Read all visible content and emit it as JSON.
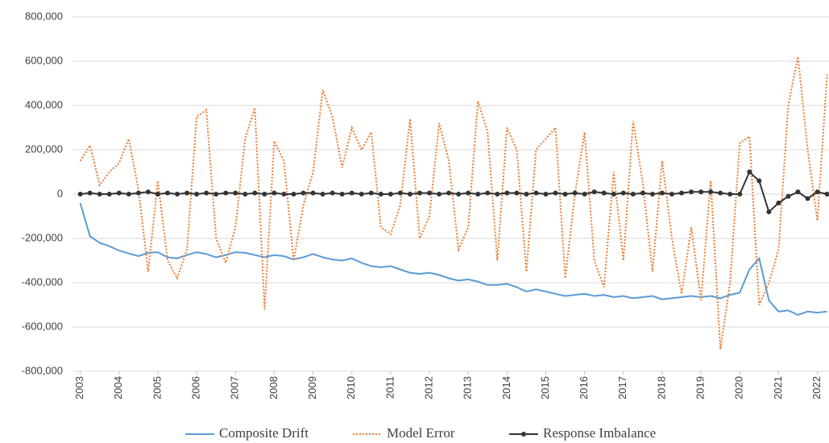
{
  "chart_data": {
    "type": "line",
    "x": [
      2003,
      2003.25,
      2003.5,
      2003.75,
      2004,
      2004.25,
      2004.5,
      2004.75,
      2005,
      2005.25,
      2005.5,
      2005.75,
      2006,
      2006.25,
      2006.5,
      2006.75,
      2007,
      2007.25,
      2007.5,
      2007.75,
      2008,
      2008.25,
      2008.5,
      2008.75,
      2009,
      2009.25,
      2009.5,
      2009.75,
      2010,
      2010.25,
      2010.5,
      2010.75,
      2011,
      2011.25,
      2011.5,
      2011.75,
      2012,
      2012.25,
      2012.5,
      2012.75,
      2013,
      2013.25,
      2013.5,
      2013.75,
      2014,
      2014.25,
      2014.5,
      2014.75,
      2015,
      2015.25,
      2015.5,
      2015.75,
      2016,
      2016.25,
      2016.5,
      2016.75,
      2017,
      2017.25,
      2017.5,
      2017.75,
      2018,
      2018.25,
      2018.5,
      2018.75,
      2019,
      2019.25,
      2019.5,
      2019.75,
      2020,
      2020.25,
      2020.5,
      2020.75,
      2021,
      2021.25,
      2021.5,
      2021.75,
      2022,
      2022.25
    ],
    "series": [
      {
        "name": "Composite Drift",
        "color": "#5b9bd5",
        "linestyle": "solid",
        "values": [
          -40000,
          -190000,
          -220000,
          -235000,
          -255000,
          -268000,
          -280000,
          -265000,
          -262000,
          -285000,
          -290000,
          -275000,
          -262000,
          -270000,
          -285000,
          -275000,
          -262000,
          -265000,
          -275000,
          -285000,
          -275000,
          -280000,
          -295000,
          -285000,
          -270000,
          -285000,
          -295000,
          -300000,
          -290000,
          -310000,
          -325000,
          -330000,
          -325000,
          -340000,
          -355000,
          -360000,
          -355000,
          -365000,
          -380000,
          -390000,
          -385000,
          -395000,
          -410000,
          -410000,
          -405000,
          -420000,
          -440000,
          -430000,
          -440000,
          -450000,
          -460000,
          -455000,
          -450000,
          -460000,
          -455000,
          -465000,
          -460000,
          -470000,
          -465000,
          -460000,
          -475000,
          -470000,
          -465000,
          -460000,
          -465000,
          -460000,
          -470000,
          -455000,
          -445000,
          -340000,
          -290000,
          -480000,
          -530000,
          -525000,
          -545000,
          -530000,
          -535000,
          -530000
        ]
      },
      {
        "name": "Model Error",
        "color": "#ed7d31",
        "linestyle": "dotted",
        "values": [
          150000,
          220000,
          40000,
          100000,
          140000,
          250000,
          20000,
          -350000,
          60000,
          -300000,
          -380000,
          -250000,
          350000,
          380000,
          -200000,
          -310000,
          -150000,
          250000,
          390000,
          -520000,
          240000,
          150000,
          -300000,
          -50000,
          100000,
          470000,
          350000,
          120000,
          300000,
          200000,
          280000,
          -150000,
          -180000,
          -50000,
          340000,
          -200000,
          -100000,
          320000,
          150000,
          -250000,
          -150000,
          420000,
          280000,
          -300000,
          300000,
          200000,
          -350000,
          200000,
          250000,
          300000,
          -380000,
          0,
          280000,
          -300000,
          -420000,
          100000,
          -300000,
          330000,
          50000,
          -350000,
          150000,
          -200000,
          -450000,
          -150000,
          -480000,
          60000,
          -700000,
          -400000,
          230000,
          260000,
          -500000,
          -400000,
          -250000,
          400000,
          620000,
          200000,
          -120000,
          540000
        ]
      },
      {
        "name": "Response Imbalance",
        "color": "#333333",
        "linestyle": "solid",
        "marker": "circle",
        "values": [
          0,
          5000,
          0,
          0,
          5000,
          0,
          5000,
          10000,
          0,
          5000,
          0,
          5000,
          0,
          5000,
          0,
          5000,
          5000,
          0,
          5000,
          0,
          5000,
          0,
          0,
          5000,
          5000,
          0,
          5000,
          0,
          5000,
          0,
          5000,
          0,
          0,
          5000,
          0,
          5000,
          5000,
          0,
          5000,
          0,
          5000,
          0,
          5000,
          0,
          5000,
          5000,
          0,
          5000,
          0,
          5000,
          0,
          5000,
          0,
          10000,
          5000,
          0,
          5000,
          0,
          5000,
          0,
          5000,
          0,
          5000,
          10000,
          10000,
          10000,
          5000,
          0,
          0,
          100000,
          60000,
          -80000,
          -40000,
          -10000,
          10000,
          -20000,
          10000,
          0
        ]
      }
    ],
    "xlim": [
      2002.8,
      2022.3
    ],
    "xticks": [
      2003,
      2004,
      2005,
      2006,
      2007,
      2008,
      2009,
      2010,
      2011,
      2012,
      2013,
      2014,
      2015,
      2016,
      2017,
      2018,
      2019,
      2020,
      2021,
      2022
    ],
    "ylim": [
      -800000,
      800000
    ],
    "yticks": [
      {
        "value": -800000,
        "label": "-800,000"
      },
      {
        "value": -600000,
        "label": "-600,000"
      },
      {
        "value": -400000,
        "label": "-400,000"
      },
      {
        "value": -200000,
        "label": "-200,000"
      },
      0,
      {
        "value": 200000,
        "label": "200,000"
      },
      {
        "value": 400000,
        "label": "400,000"
      },
      {
        "value": 600000,
        "label": "600,000"
      },
      {
        "value": 800000,
        "label": "800,000"
      }
    ],
    "grid": true,
    "legend": "bottom"
  }
}
